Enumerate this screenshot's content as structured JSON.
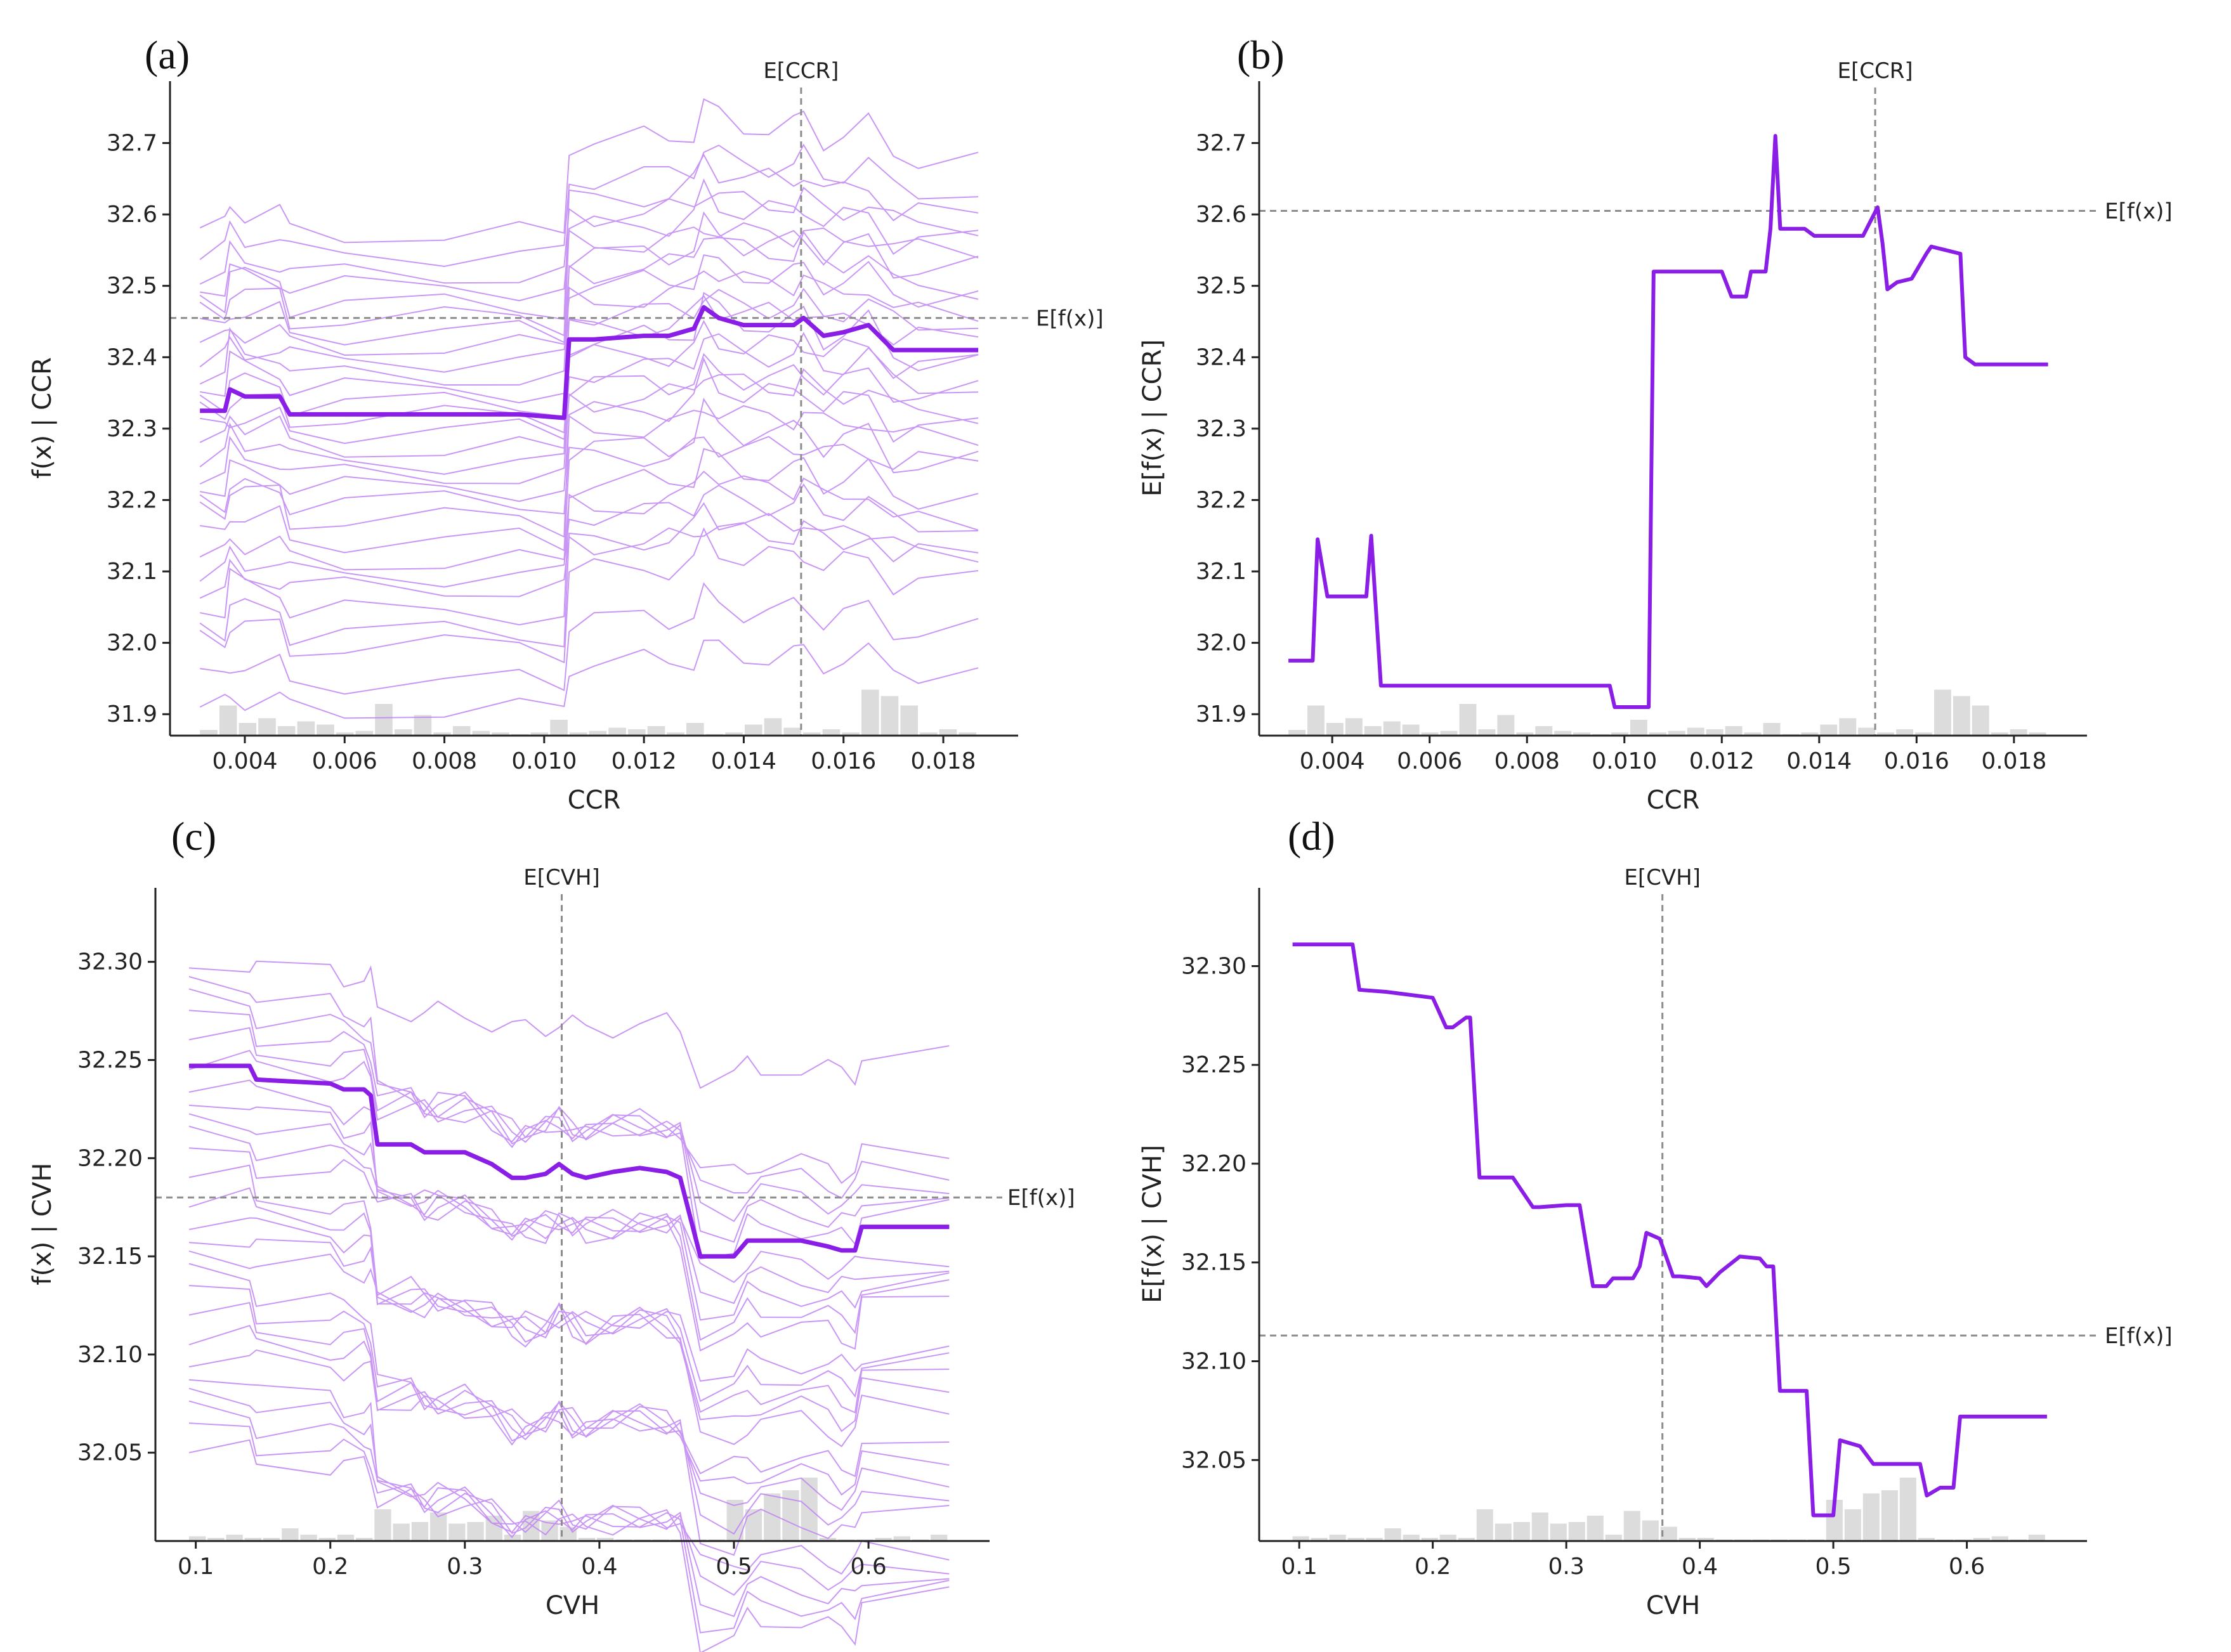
{
  "colors": {
    "mean_line": "#8a1de6",
    "ice_lines": "#c084f5",
    "histogram": "#dcdcdc",
    "reference": "#8c8c8c",
    "axis": "#222222"
  },
  "chart_data": [
    {
      "panel": "(a)",
      "type": "line",
      "style": "ice",
      "xlabel": "CCR",
      "ylabel": "f(x) | CCR",
      "xlim": [
        0.0025,
        0.0195
      ],
      "ylim": [
        31.87,
        32.76
      ],
      "xticks": [
        0.004,
        0.006,
        0.008,
        0.01,
        0.012,
        0.014,
        0.016,
        0.018
      ],
      "xtick_labels": [
        "0.004",
        "0.006",
        "0.008",
        "0.010",
        "0.012",
        "0.014",
        "0.016",
        "0.018"
      ],
      "yticks": [
        31.9,
        32.0,
        32.1,
        32.2,
        32.3,
        32.4,
        32.5,
        32.6,
        32.7
      ],
      "ytick_labels": [
        "31.9",
        "32.0",
        "32.1",
        "32.2",
        "32.3",
        "32.4",
        "32.5",
        "32.6",
        "32.7"
      ],
      "expected_x": 0.01515,
      "expected_x_label": "E[CCR]",
      "expected_y": 32.455,
      "expected_y_label": "E[f(x)]",
      "x": [
        0.0031,
        0.0036,
        0.0037,
        0.004,
        0.0047,
        0.0049,
        0.006,
        0.008,
        0.0095,
        0.0104,
        0.0105,
        0.011,
        0.012,
        0.0125,
        0.013,
        0.0132,
        0.0135,
        0.014,
        0.0145,
        0.015,
        0.0152,
        0.0156,
        0.016,
        0.0165,
        0.017,
        0.0175,
        0.0187
      ],
      "mean": [
        32.325,
        32.325,
        32.355,
        32.345,
        32.345,
        32.32,
        32.32,
        32.32,
        32.32,
        32.315,
        32.425,
        32.425,
        32.43,
        32.43,
        32.44,
        32.47,
        32.455,
        32.445,
        32.445,
        32.445,
        32.455,
        32.43,
        32.435,
        32.445,
        32.41,
        32.41,
        32.41
      ],
      "ice_baselines": [
        31.91,
        31.95,
        32.0,
        32.02,
        32.05,
        32.08,
        32.1,
        32.12,
        32.15,
        32.18,
        32.2,
        32.22,
        32.24,
        32.26,
        32.28,
        32.3,
        32.32,
        32.34,
        32.36,
        32.38,
        32.4,
        32.42,
        32.44,
        32.46,
        32.48,
        32.5,
        32.52,
        32.55,
        32.58
      ],
      "hist": [
        0.18,
        0.95,
        0.4,
        0.55,
        0.3,
        0.45,
        0.35,
        0.1,
        0.15,
        1.0,
        0.2,
        0.65,
        0.1,
        0.3,
        0.15,
        0.1,
        0.05,
        0.1,
        0.5,
        0.1,
        0.15,
        0.25,
        0.2,
        0.3,
        0.1,
        0.4,
        0.05,
        0.1,
        0.35,
        0.55,
        0.25,
        0.1,
        0.2,
        0.1,
        1.45,
        1.25,
        0.95,
        0.1,
        0.2,
        0.1
      ]
    },
    {
      "panel": "(b)",
      "type": "line",
      "style": "mean",
      "xlabel": "CCR",
      "ylabel": "E[f(x) | CCR]",
      "xlim": [
        0.0025,
        0.0195
      ],
      "ylim": [
        31.87,
        32.76
      ],
      "xticks": [
        0.004,
        0.006,
        0.008,
        0.01,
        0.012,
        0.014,
        0.016,
        0.018
      ],
      "xtick_labels": [
        "0.004",
        "0.006",
        "0.008",
        "0.010",
        "0.012",
        "0.014",
        "0.016",
        "0.018"
      ],
      "yticks": [
        31.9,
        32.0,
        32.1,
        32.2,
        32.3,
        32.4,
        32.5,
        32.6,
        32.7
      ],
      "ytick_labels": [
        "31.9",
        "32.0",
        "32.1",
        "32.2",
        "32.3",
        "32.4",
        "32.5",
        "32.6",
        "32.7"
      ],
      "expected_x": 0.01515,
      "expected_x_label": "E[CCR]",
      "expected_y": 32.605,
      "expected_y_label": "E[f(x)]",
      "x": [
        0.0031,
        0.0036,
        0.0037,
        0.0039,
        0.0046,
        0.0047,
        0.0048,
        0.005,
        0.006,
        0.008,
        0.0097,
        0.0098,
        0.0105,
        0.0106,
        0.012,
        0.0122,
        0.0125,
        0.0126,
        0.0129,
        0.013,
        0.0131,
        0.0132,
        0.0133,
        0.0137,
        0.0139,
        0.0146,
        0.0149,
        0.0152,
        0.0153,
        0.0154,
        0.0156,
        0.0159,
        0.0162,
        0.0163,
        0.0166,
        0.0169,
        0.017,
        0.0172,
        0.0187
      ],
      "values": [
        31.975,
        31.975,
        32.145,
        32.065,
        32.065,
        32.065,
        32.15,
        31.94,
        31.94,
        31.94,
        31.94,
        31.91,
        31.91,
        32.52,
        32.52,
        32.485,
        32.485,
        32.52,
        32.52,
        32.58,
        32.71,
        32.58,
        32.58,
        32.58,
        32.57,
        32.57,
        32.57,
        32.61,
        32.56,
        32.495,
        32.505,
        32.51,
        32.545,
        32.555,
        32.55,
        32.545,
        32.4,
        32.39,
        32.39
      ],
      "hist": [
        0.18,
        0.95,
        0.4,
        0.55,
        0.3,
        0.45,
        0.35,
        0.1,
        0.15,
        1.0,
        0.2,
        0.65,
        0.1,
        0.3,
        0.15,
        0.1,
        0.05,
        0.1,
        0.5,
        0.1,
        0.15,
        0.25,
        0.2,
        0.3,
        0.1,
        0.4,
        0.05,
        0.1,
        0.35,
        0.55,
        0.25,
        0.1,
        0.2,
        0.1,
        1.45,
        1.25,
        0.95,
        0.1,
        0.2,
        0.1
      ]
    },
    {
      "panel": "(c)",
      "type": "line",
      "style": "ice",
      "xlabel": "CVH",
      "ylabel": "f(x) | CVH",
      "xlim": [
        0.07,
        0.69
      ],
      "ylim": [
        32.005,
        32.328
      ],
      "xticks": [
        0.1,
        0.2,
        0.3,
        0.4,
        0.5,
        0.6
      ],
      "xtick_labels": [
        "0.1",
        "0.2",
        "0.3",
        "0.4",
        "0.5",
        "0.6"
      ],
      "yticks": [
        32.05,
        32.1,
        32.15,
        32.2,
        32.25,
        32.3
      ],
      "ytick_labels": [
        "32.05",
        "32.10",
        "32.15",
        "32.20",
        "32.25",
        "32.30"
      ],
      "expected_x": 0.372,
      "expected_x_label": "E[CVH]",
      "expected_y": 32.18,
      "expected_y_label": "E[f(x)]",
      "x": [
        0.095,
        0.14,
        0.145,
        0.2,
        0.21,
        0.225,
        0.23,
        0.235,
        0.26,
        0.27,
        0.28,
        0.3,
        0.32,
        0.335,
        0.345,
        0.36,
        0.37,
        0.38,
        0.39,
        0.41,
        0.43,
        0.45,
        0.46,
        0.475,
        0.5,
        0.51,
        0.52,
        0.55,
        0.57,
        0.58,
        0.59,
        0.595,
        0.66
      ],
      "mean": [
        32.247,
        32.247,
        32.24,
        32.238,
        32.235,
        32.235,
        32.232,
        32.207,
        32.207,
        32.203,
        32.203,
        32.203,
        32.197,
        32.19,
        32.19,
        32.192,
        32.197,
        32.192,
        32.19,
        32.193,
        32.195,
        32.193,
        32.19,
        32.15,
        32.15,
        32.158,
        32.158,
        32.158,
        32.155,
        32.153,
        32.153,
        32.165,
        32.165
      ],
      "ice_baselines": [
        32.05,
        32.06,
        32.07,
        32.08,
        32.09,
        32.1,
        32.11,
        32.12,
        32.13,
        32.14,
        32.15,
        32.16,
        32.17,
        32.18,
        32.19,
        32.2,
        32.21,
        32.22,
        32.23,
        32.24,
        32.25,
        32.26,
        32.27,
        32.28,
        32.29,
        32.3
      ],
      "hist": [
        0.15,
        0.1,
        0.2,
        0.1,
        0.1,
        0.4,
        0.2,
        0.1,
        0.2,
        0.1,
        1.0,
        0.55,
        0.6,
        0.9,
        0.55,
        0.6,
        0.8,
        0.2,
        0.95,
        0.65,
        0.45,
        0.1,
        0.1,
        0.05,
        0.05,
        0.05,
        0.05,
        0.05,
        0.05,
        1.3,
        1.0,
        1.5,
        1.6,
        2.0,
        0.1,
        0.05,
        0.05,
        0.1,
        0.15,
        0.05,
        0.2
      ]
    },
    {
      "panel": "(d)",
      "type": "line",
      "style": "mean",
      "xlabel": "CVH",
      "ylabel": "E[f(x) | CVH]",
      "xlim": [
        0.07,
        0.69
      ],
      "ylim": [
        32.009,
        32.33
      ],
      "xticks": [
        0.1,
        0.2,
        0.3,
        0.4,
        0.5,
        0.6
      ],
      "xtick_labels": [
        "0.1",
        "0.2",
        "0.3",
        "0.4",
        "0.5",
        "0.6"
      ],
      "yticks": [
        32.05,
        32.1,
        32.15,
        32.2,
        32.25,
        32.3
      ],
      "ytick_labels": [
        "32.05",
        "32.10",
        "32.15",
        "32.20",
        "32.25",
        "32.30"
      ],
      "expected_x": 0.372,
      "expected_x_label": "E[CVH]",
      "expected_y": 32.113,
      "expected_y_label": "E[f(x)]",
      "x": [
        0.095,
        0.14,
        0.145,
        0.165,
        0.2,
        0.21,
        0.215,
        0.225,
        0.228,
        0.235,
        0.24,
        0.26,
        0.275,
        0.28,
        0.3,
        0.31,
        0.32,
        0.33,
        0.335,
        0.35,
        0.355,
        0.36,
        0.37,
        0.38,
        0.385,
        0.4,
        0.405,
        0.415,
        0.43,
        0.445,
        0.45,
        0.455,
        0.46,
        0.48,
        0.485,
        0.5,
        0.505,
        0.52,
        0.53,
        0.565,
        0.57,
        0.58,
        0.59,
        0.595,
        0.66
      ],
      "values": [
        32.311,
        32.311,
        32.288,
        32.287,
        32.284,
        32.269,
        32.269,
        32.274,
        32.274,
        32.193,
        32.193,
        32.193,
        32.178,
        32.178,
        32.179,
        32.179,
        32.138,
        32.138,
        32.142,
        32.142,
        32.148,
        32.165,
        32.162,
        32.143,
        32.143,
        32.142,
        32.138,
        32.145,
        32.153,
        32.152,
        32.148,
        32.148,
        32.085,
        32.085,
        32.022,
        32.022,
        32.06,
        32.057,
        32.048,
        32.048,
        32.032,
        32.036,
        32.036,
        32.072,
        32.072
      ],
      "hist": [
        0.15,
        0.1,
        0.2,
        0.1,
        0.1,
        0.4,
        0.2,
        0.1,
        0.2,
        0.1,
        1.0,
        0.55,
        0.6,
        0.9,
        0.55,
        0.6,
        0.8,
        0.2,
        0.95,
        0.65,
        0.45,
        0.1,
        0.1,
        0.05,
        0.05,
        0.05,
        0.05,
        0.05,
        0.05,
        1.3,
        1.0,
        1.5,
        1.6,
        2.0,
        0.1,
        0.05,
        0.05,
        0.1,
        0.15,
        0.05,
        0.2
      ]
    }
  ]
}
